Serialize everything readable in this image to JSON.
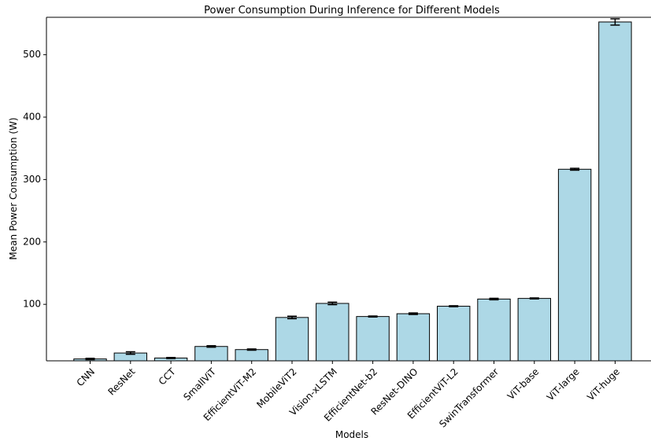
{
  "chart_data": {
    "type": "bar",
    "title": "Power Consumption During Inference for Different Models",
    "xlabel": "Models",
    "ylabel": "Mean Power Consumption (W)",
    "categories": [
      "CNN",
      "ResNet",
      "CCT",
      "SmallViT",
      "EfficientViT-M2",
      "MobileViT2",
      "Vision-xLSTM",
      "EfficientNet-b2",
      "ResNet-DINO",
      "EfficientViT-L2",
      "SwinTransformer",
      "ViT-base",
      "ViT-large",
      "ViT-huge"
    ],
    "values": [
      12.5,
      22.0,
      14.0,
      32.5,
      27.5,
      79.0,
      101.5,
      80.5,
      85.0,
      97.0,
      108.5,
      109.5,
      316.5,
      552.5
    ],
    "errors": [
      1.0,
      2.0,
      0.8,
      1.2,
      1.0,
      2.0,
      2.0,
      0.8,
      1.2,
      0.8,
      1.2,
      0.8,
      1.5,
      5.0
    ],
    "ylim": [
      9.5,
      560
    ],
    "yticks": [
      100,
      200,
      300,
      400,
      500
    ],
    "bar_color": "#add8e6",
    "edge_color": "#000000",
    "grid": false,
    "legend": "none"
  }
}
